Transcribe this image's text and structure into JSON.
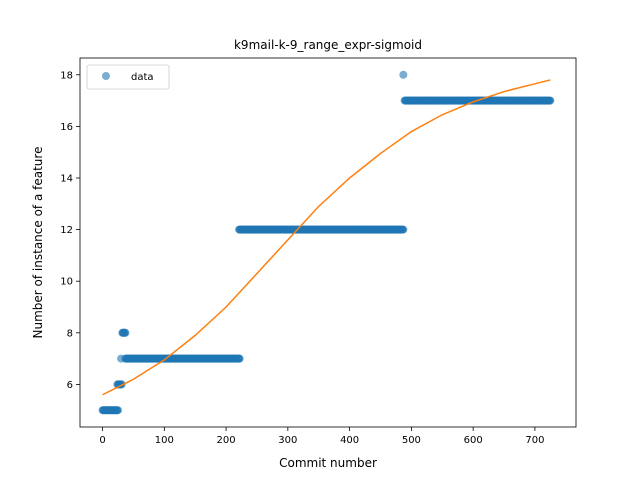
{
  "chart_data": {
    "type": "scatter",
    "title": "k9mail-k-9_range_expr-sigmoid",
    "xlabel": "Commit number",
    "ylabel": "Number of instance of a feature",
    "xlim": [
      -36.5,
      766.5
    ],
    "ylim": [
      4.35,
      18.65
    ],
    "xticks": [
      0,
      100,
      200,
      300,
      400,
      500,
      600,
      700
    ],
    "yticks": [
      6,
      8,
      10,
      12,
      14,
      16,
      18
    ],
    "grid": false,
    "legend": {
      "placement": "upper-left",
      "entries": [
        {
          "label": "data",
          "marker": "circle",
          "color": "#1f77b4"
        }
      ]
    },
    "series": [
      {
        "name": "data",
        "kind": "scatter",
        "color": "#1f77b4",
        "alpha": 0.6,
        "segments": [
          {
            "x_start": 0,
            "x_end": 25,
            "y": 5
          },
          {
            "x_start": 24,
            "x_end": 31,
            "y": 6
          },
          {
            "x_start": 30,
            "x_end": 30,
            "y": 7
          },
          {
            "x_start": 32,
            "x_end": 37,
            "y": 8
          },
          {
            "x_start": 37,
            "x_end": 222,
            "y": 7
          },
          {
            "x_start": 221,
            "x_end": 487,
            "y": 12
          },
          {
            "x_start": 487,
            "x_end": 487,
            "y": 18
          },
          {
            "x_start": 489,
            "x_end": 725,
            "y": 17
          }
        ]
      },
      {
        "name": "",
        "kind": "line",
        "color": "#ff7f0e",
        "x": [
          0,
          50,
          100,
          150,
          200,
          250,
          300,
          350,
          400,
          450,
          500,
          550,
          600,
          650,
          700,
          725
        ],
        "y": [
          5.6,
          6.2,
          6.95,
          7.9,
          9.0,
          10.3,
          11.6,
          12.9,
          14.0,
          14.95,
          15.8,
          16.45,
          16.95,
          17.35,
          17.65,
          17.8
        ]
      }
    ]
  }
}
